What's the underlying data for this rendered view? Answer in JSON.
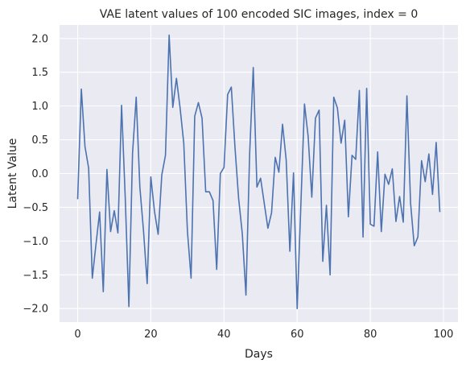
{
  "chart_data": {
    "type": "line",
    "title": "VAE latent values of 100 encoded SIC images, index = 0",
    "xlabel": "Days",
    "ylabel": "Latent Value",
    "xlim": [
      -4.95,
      103.95
    ],
    "ylim": [
      -2.2,
      2.2
    ],
    "xticks": [
      0,
      20,
      40,
      60,
      80,
      100
    ],
    "yticks": [
      -2.0,
      -1.5,
      -1.0,
      -0.5,
      0.0,
      0.5,
      1.0,
      1.5,
      2.0
    ],
    "xtick_labels": [
      "0",
      "20",
      "40",
      "60",
      "80",
      "100"
    ],
    "ytick_labels": [
      "−2.0",
      "−1.5",
      "−1.0",
      "−0.5",
      "0.0",
      "0.5",
      "1.0",
      "1.5",
      "2.0"
    ],
    "grid": true,
    "background": "#eaeaf2",
    "grid_color": "#ffffff",
    "series": [
      {
        "color": "#4c72b0",
        "x": [
          0,
          1,
          2,
          3,
          4,
          5,
          6,
          7,
          8,
          9,
          10,
          11,
          12,
          13,
          14,
          15,
          16,
          17,
          18,
          19,
          20,
          21,
          22,
          23,
          24,
          25,
          26,
          27,
          28,
          29,
          30,
          31,
          32,
          33,
          34,
          35,
          36,
          37,
          38,
          39,
          40,
          41,
          42,
          43,
          44,
          45,
          46,
          47,
          48,
          49,
          50,
          51,
          52,
          53,
          54,
          55,
          56,
          57,
          58,
          59,
          60,
          61,
          62,
          63,
          64,
          65,
          66,
          67,
          68,
          69,
          70,
          71,
          72,
          73,
          74,
          75,
          76,
          77,
          78,
          79,
          80,
          81,
          82,
          83,
          84,
          85,
          86,
          87,
          88,
          89,
          90,
          91,
          92,
          93,
          94,
          95,
          96,
          97,
          98,
          99
        ],
        "y": [
          -0.38,
          1.25,
          0.4,
          0.08,
          -1.55,
          -1.05,
          -0.57,
          -1.75,
          0.06,
          -0.86,
          -0.55,
          -0.88,
          1.01,
          -0.35,
          -1.97,
          0.3,
          1.13,
          -0.2,
          -0.85,
          -1.63,
          -0.05,
          -0.56,
          -0.9,
          -0.02,
          0.27,
          2.05,
          0.98,
          1.41,
          0.97,
          0.45,
          -0.85,
          -1.55,
          0.85,
          1.05,
          0.82,
          -0.27,
          -0.27,
          -0.4,
          -1.42,
          0.0,
          0.09,
          1.17,
          1.28,
          0.39,
          -0.37,
          -0.89,
          -1.8,
          0.28,
          1.57,
          -0.2,
          -0.07,
          -0.44,
          -0.81,
          -0.58,
          0.24,
          0.02,
          0.73,
          0.2,
          -1.15,
          0.01,
          -2.0,
          -0.48,
          1.03,
          0.55,
          -0.35,
          0.82,
          0.94,
          -1.3,
          -0.47,
          -1.5,
          1.13,
          0.97,
          0.45,
          0.79,
          -0.64,
          0.27,
          0.21,
          1.23,
          -0.94,
          1.26,
          -0.75,
          -0.78,
          0.32,
          -0.86,
          -0.01,
          -0.16,
          0.07,
          -0.71,
          -0.34,
          -0.72,
          1.15,
          -0.44,
          -1.07,
          -0.94,
          0.19,
          -0.12,
          0.29,
          -0.31,
          0.46,
          -0.57
        ]
      }
    ]
  }
}
